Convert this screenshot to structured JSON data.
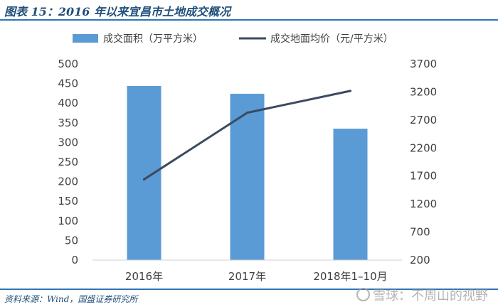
{
  "header": {
    "title": "图表 15：2016 年以来宜昌市土地成交概况"
  },
  "footer": {
    "source": "资料来源：Wind，国盛证券研究所"
  },
  "watermark": {
    "text": "雪球：不周山的视野"
  },
  "colors": {
    "bar": "#5b9bd5",
    "line": "#3b4a5f",
    "accent": "#1f4e79",
    "rule": "#2e75b6"
  },
  "chart_data": {
    "type": "bar+line",
    "categories": [
      "2016年",
      "2017年",
      "2018年1–10月"
    ],
    "series": [
      {
        "name": "成交面积（万平方米）",
        "type": "bar",
        "axis": "left",
        "values": [
          444,
          424,
          335
        ]
      },
      {
        "name": "成交地面均价（元/平方米）",
        "type": "line",
        "axis": "right",
        "values": [
          1640,
          2830,
          3220
        ]
      }
    ],
    "y_left": {
      "min": 0,
      "max": 500,
      "ticks": [
        0,
        50,
        100,
        150,
        200,
        250,
        300,
        350,
        400,
        450,
        500
      ]
    },
    "y_right": {
      "min": 200,
      "max": 3700,
      "ticks": [
        200,
        700,
        1200,
        1700,
        2200,
        2700,
        3200,
        3700
      ]
    },
    "grid": false,
    "legend_position": "top"
  }
}
